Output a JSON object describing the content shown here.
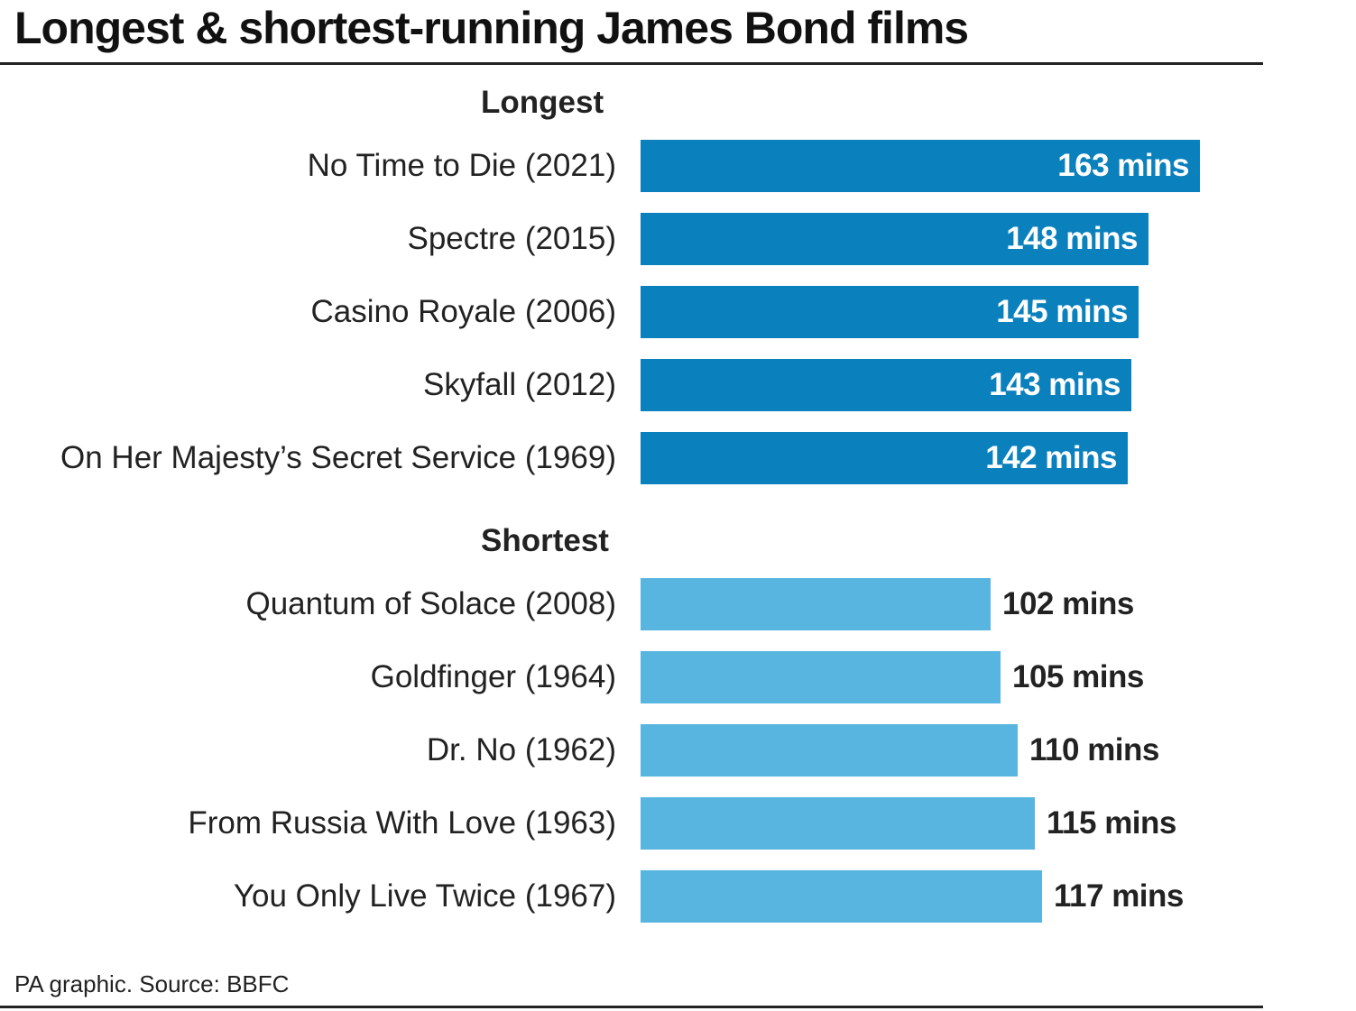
{
  "chart_data": {
    "type": "bar",
    "orientation": "horizontal",
    "title": "Longest & shortest-running James Bond films",
    "source": "PA graphic. Source: BBFC",
    "unit": "mins",
    "groups": [
      {
        "name": "Longest",
        "color": "#0a80bd",
        "categories": [
          "No Time to Die (2021)",
          "Spectre (2015)",
          "Casino Royale (2006)",
          "Skyfall (2012)",
          "On Her Majesty’s Secret Service (1969)"
        ],
        "values": [
          163,
          148,
          145,
          143,
          142
        ],
        "labels": [
          "163 mins",
          "148 mins",
          "145 mins",
          "143 mins",
          "142 mins"
        ]
      },
      {
        "name": "Shortest",
        "color": "#58b5df",
        "categories": [
          "Quantum of Solace (2008)",
          "Goldfinger (1964)",
          "Dr. No (1962)",
          "From Russia With Love (1963)",
          "You Only Live Twice (1967)"
        ],
        "values": [
          102,
          105,
          110,
          115,
          117
        ],
        "labels": [
          "102 mins",
          "105 mins",
          "110 mins",
          "115 mins",
          "117 mins"
        ]
      }
    ],
    "xlim": [
      0,
      163
    ],
    "grid": false,
    "legend": "none"
  }
}
